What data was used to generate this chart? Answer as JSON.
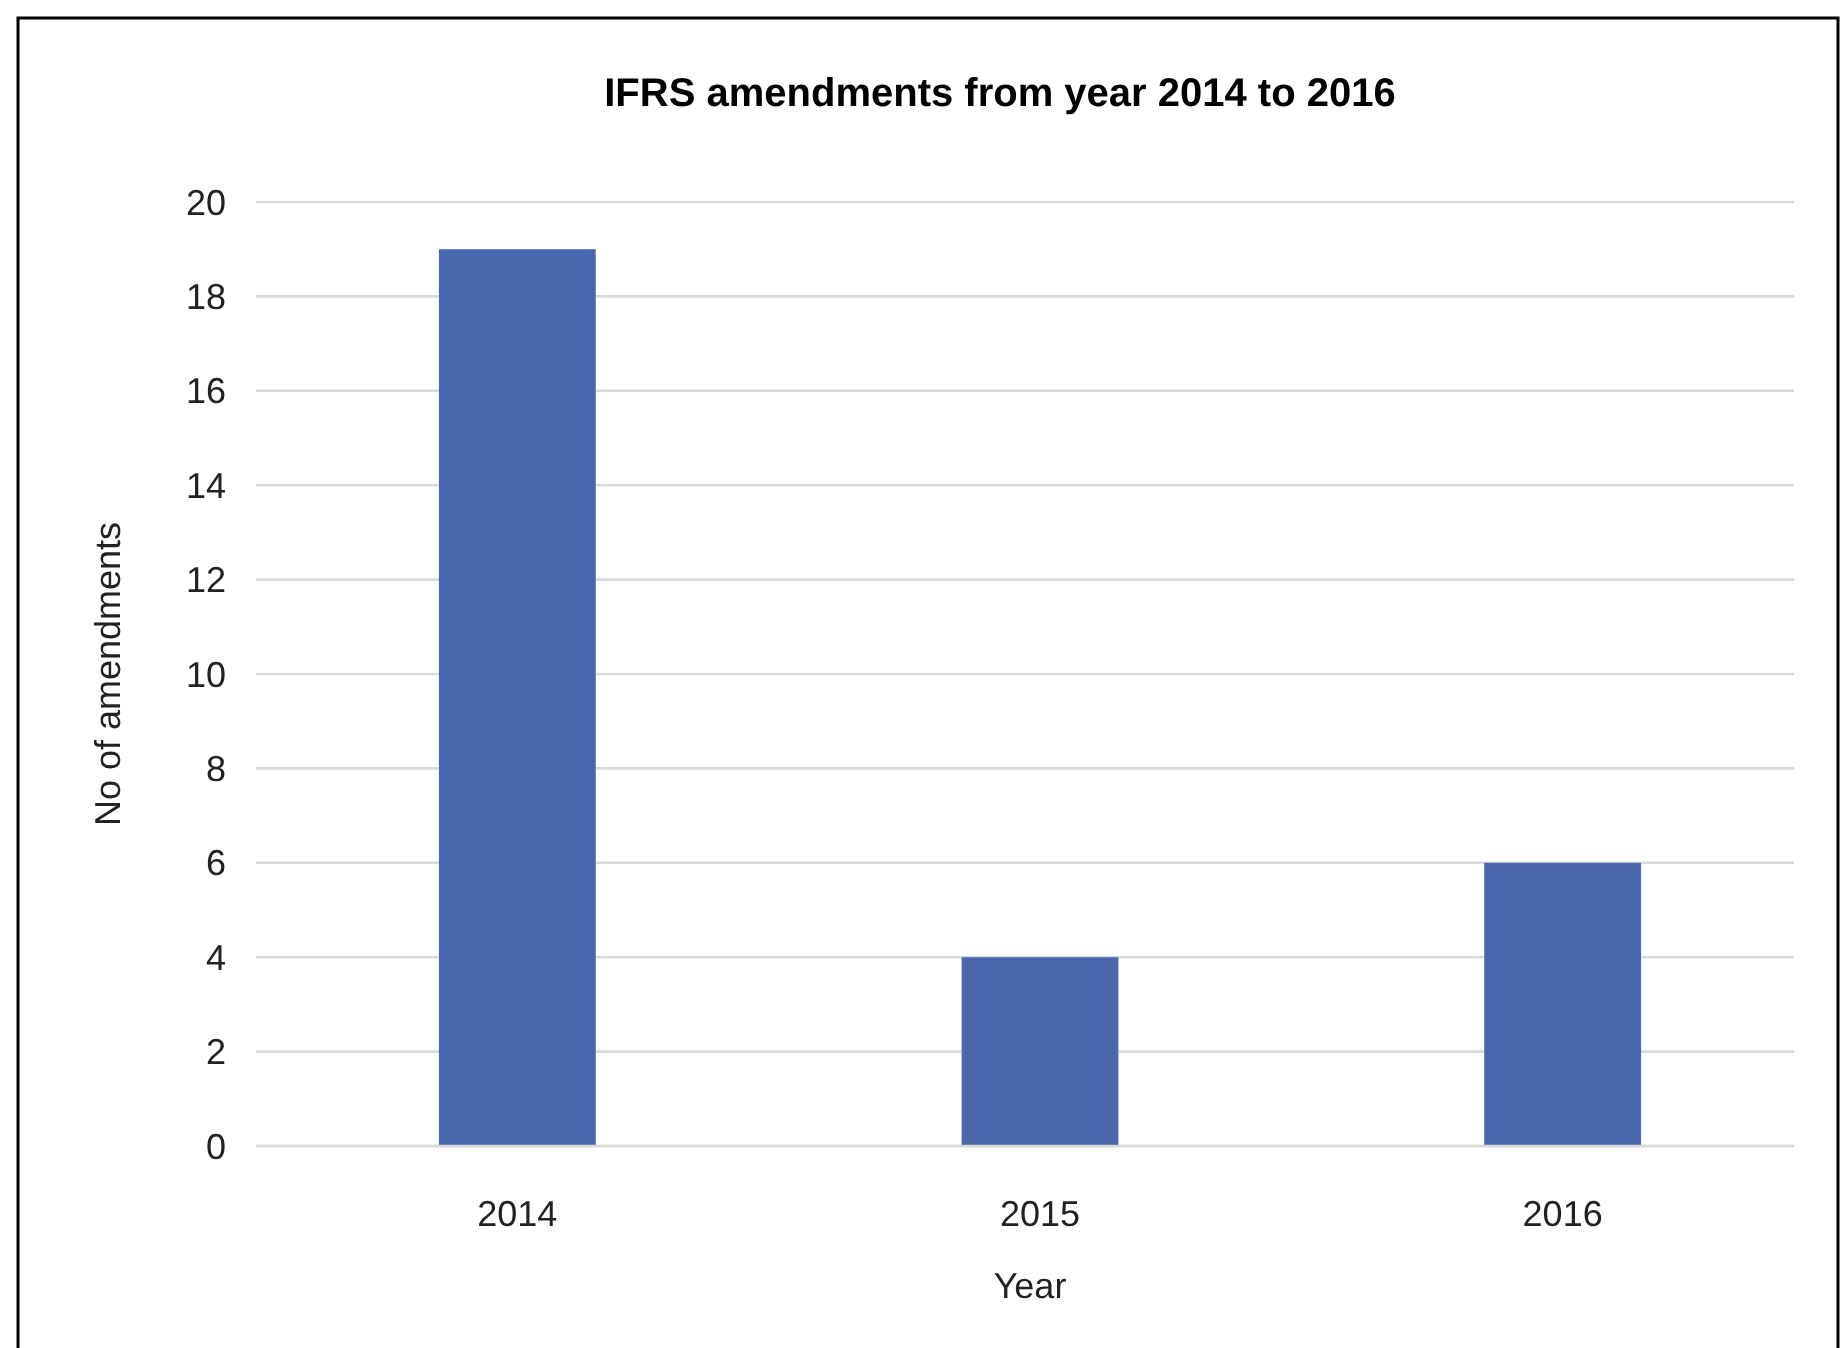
{
  "chart_data": {
    "type": "bar",
    "title": "IFRS amendments from year 2014 to 2016",
    "xlabel": "Year",
    "ylabel": "No of amendments",
    "categories": [
      "2014",
      "2015",
      "2016"
    ],
    "values": [
      19,
      4,
      6
    ],
    "color": "#4a66ac",
    "ylim": [
      0,
      20
    ],
    "yticks": [
      0,
      2,
      4,
      6,
      8,
      10,
      12,
      14,
      16,
      18,
      20
    ],
    "grid": "y"
  }
}
